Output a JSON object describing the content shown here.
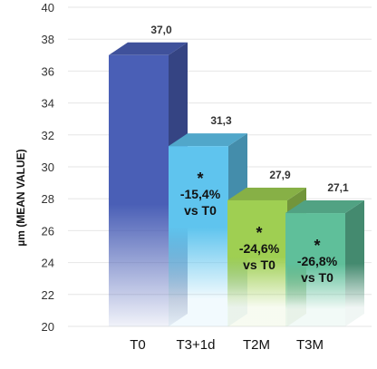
{
  "chart_data": {
    "type": "bar",
    "title": "",
    "xlabel": "",
    "ylabel": "µm (MEAN VALUE)",
    "ylim": [
      20,
      40
    ],
    "yticks": [
      "20",
      "22",
      "24",
      "26",
      "28",
      "30",
      "32",
      "34",
      "36",
      "38",
      "40"
    ],
    "categories": [
      "T0",
      "T3+1d",
      "T2M",
      "T3M"
    ],
    "values": [
      37.0,
      31.3,
      27.9,
      27.1
    ],
    "value_labels": [
      "37,0",
      "31,3",
      "27,9",
      "27,1"
    ],
    "annotations": [
      {
        "star": "",
        "line1": "",
        "line2": ""
      },
      {
        "star": "*",
        "line1": "-15,4%",
        "line2": "vs T0"
      },
      {
        "star": "*",
        "line1": "-24,6%",
        "line2": "vs T0"
      },
      {
        "star": "*",
        "line1": "-26,8%",
        "line2": "vs T0"
      }
    ],
    "bar_colors": [
      "#4a5fb6",
      "#5fc4ee",
      "#9fcf52",
      "#5fbf9a"
    ],
    "grid": true,
    "legend": "none"
  }
}
